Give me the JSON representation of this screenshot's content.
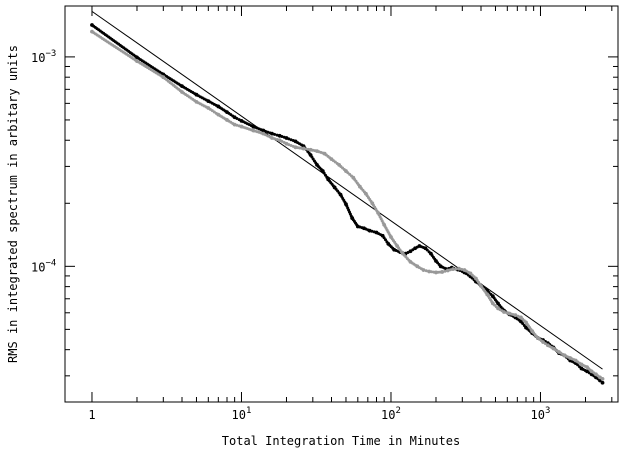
{
  "chart_data": {
    "type": "scatter",
    "title": "",
    "xlabel": "Total Integration Time in Minutes",
    "ylabel": "RMS in integrated spectrum in arbitary units",
    "xscale": "log",
    "yscale": "log",
    "xlim": [
      0.66,
      3300
    ],
    "ylim": [
      2.25e-05,
      0.00175
    ],
    "grid": false,
    "x_ticks": [
      {
        "value": 1,
        "base": "1",
        "exp": ""
      },
      {
        "value": 10,
        "base": "10",
        "exp": "1"
      },
      {
        "value": 100,
        "base": "10",
        "exp": "2"
      },
      {
        "value": 1000,
        "base": "10",
        "exp": "3"
      }
    ],
    "y_ticks": [
      {
        "value": 0.0001,
        "base": "10",
        "exp": "−4"
      },
      {
        "value": 0.001,
        "base": "10",
        "exp": "−3"
      }
    ],
    "reference_line": {
      "points": [
        [
          1,
          0.00165
        ],
        [
          2600,
          3.23e-05
        ]
      ],
      "color": "#000000"
    },
    "series": [
      {
        "color": "#000000",
        "marker": "dot",
        "points": [
          [
            1,
            0.00142
          ],
          [
            2,
            0.000995
          ],
          [
            3,
            0.000825
          ],
          [
            4,
            0.000725
          ],
          [
            5,
            0.00066
          ],
          [
            6,
            0.000615
          ],
          [
            7,
            0.00058
          ],
          [
            8,
            0.000545
          ],
          [
            9,
            0.000515
          ],
          [
            10,
            0.000495
          ],
          [
            12,
            0.000465
          ],
          [
            14,
            0.000445
          ],
          [
            16,
            0.00043
          ],
          [
            18,
            0.00042
          ],
          [
            20,
            0.00041
          ],
          [
            23,
            0.000395
          ],
          [
            26,
            0.000375
          ],
          [
            29,
            0.00034
          ],
          [
            32,
            0.000305
          ],
          [
            35,
            0.000285
          ],
          [
            38,
            0.00026
          ],
          [
            42,
            0.000238
          ],
          [
            46,
            0.00022
          ],
          [
            50,
            0.000198
          ],
          [
            55,
            0.00017
          ],
          [
            60,
            0.000155
          ],
          [
            66,
            0.000152
          ],
          [
            72,
            0.000148
          ],
          [
            80,
            0.000145
          ],
          [
            88,
            0.00014
          ],
          [
            96,
            0.000128
          ],
          [
            105,
            0.00012
          ],
          [
            115,
            0.000117
          ],
          [
            125,
            0.000115
          ],
          [
            135,
            0.000118
          ],
          [
            145,
            0.000122
          ],
          [
            155,
            0.000125
          ],
          [
            170,
            0.000122
          ],
          [
            185,
            0.000115
          ],
          [
            200,
            0.000106
          ],
          [
            215,
            0.0001
          ],
          [
            235,
            9.7e-05
          ],
          [
            255,
            9.85e-05
          ],
          [
            280,
            9.65e-05
          ],
          [
            310,
            9.35e-05
          ],
          [
            340,
            8.95e-05
          ],
          [
            370,
            8.45e-05
          ],
          [
            400,
            8.1e-05
          ],
          [
            440,
            7.65e-05
          ],
          [
            480,
            7.2e-05
          ],
          [
            520,
            6.65e-05
          ],
          [
            570,
            6.15e-05
          ],
          [
            620,
            5.9e-05
          ],
          [
            680,
            5.7e-05
          ],
          [
            740,
            5.45e-05
          ],
          [
            800,
            5.1e-05
          ],
          [
            880,
            4.8e-05
          ],
          [
            960,
            4.55e-05
          ],
          [
            1040,
            4.45e-05
          ],
          [
            1120,
            4.3e-05
          ],
          [
            1220,
            4.1e-05
          ],
          [
            1330,
            3.85e-05
          ],
          [
            1450,
            3.75e-05
          ],
          [
            1580,
            3.55e-05
          ],
          [
            1720,
            3.45e-05
          ],
          [
            1880,
            3.25e-05
          ],
          [
            2050,
            3.15e-05
          ],
          [
            2200,
            3.05e-05
          ],
          [
            2350,
            2.95e-05
          ],
          [
            2500,
            2.85e-05
          ],
          [
            2600,
            2.78e-05
          ]
        ]
      },
      {
        "color": "#999999",
        "marker": "dot",
        "points": [
          [
            1,
            0.00132
          ],
          [
            2,
            0.000955
          ],
          [
            3,
            0.0008
          ],
          [
            4,
            0.00068
          ],
          [
            5,
            0.00061
          ],
          [
            6,
            0.00057
          ],
          [
            7,
            0.00053
          ],
          [
            8,
            0.0005
          ],
          [
            9,
            0.000475
          ],
          [
            10,
            0.000465
          ],
          [
            12,
            0.000445
          ],
          [
            14,
            0.00043
          ],
          [
            16,
            0.00041
          ],
          [
            18,
            0.0004
          ],
          [
            20,
            0.000385
          ],
          [
            23,
            0.00037
          ],
          [
            26,
            0.000365
          ],
          [
            29,
            0.00036
          ],
          [
            32,
            0.000355
          ],
          [
            36,
            0.000345
          ],
          [
            40,
            0.000325
          ],
          [
            45,
            0.000305
          ],
          [
            50,
            0.000285
          ],
          [
            56,
            0.000265
          ],
          [
            62,
            0.00024
          ],
          [
            68,
            0.000222
          ],
          [
            75,
            0.0002
          ],
          [
            82,
            0.00018
          ],
          [
            90,
            0.000158
          ],
          [
            100,
            0.000138
          ],
          [
            110,
            0.000125
          ],
          [
            120,
            0.000115
          ],
          [
            135,
            0.000105
          ],
          [
            150,
            0.0001
          ],
          [
            165,
            9.6e-05
          ],
          [
            180,
            9.45e-05
          ],
          [
            200,
            9.35e-05
          ],
          [
            220,
            9.4e-05
          ],
          [
            240,
            9.55e-05
          ],
          [
            260,
            9.7e-05
          ],
          [
            285,
            9.75e-05
          ],
          [
            310,
            9.6e-05
          ],
          [
            340,
            9.25e-05
          ],
          [
            370,
            8.75e-05
          ],
          [
            400,
            8.05e-05
          ],
          [
            440,
            7.35e-05
          ],
          [
            480,
            6.65e-05
          ],
          [
            520,
            6.3e-05
          ],
          [
            570,
            6.05e-05
          ],
          [
            620,
            5.95e-05
          ],
          [
            680,
            5.85e-05
          ],
          [
            740,
            5.7e-05
          ],
          [
            800,
            5.4e-05
          ],
          [
            880,
            4.9e-05
          ],
          [
            960,
            4.55e-05
          ],
          [
            1040,
            4.35e-05
          ],
          [
            1120,
            4.2e-05
          ],
          [
            1220,
            4.05e-05
          ],
          [
            1330,
            3.9e-05
          ],
          [
            1450,
            3.75e-05
          ],
          [
            1580,
            3.65e-05
          ],
          [
            1720,
            3.55e-05
          ],
          [
            1880,
            3.4e-05
          ],
          [
            2050,
            3.3e-05
          ],
          [
            2200,
            3.15e-05
          ],
          [
            2350,
            3.05e-05
          ],
          [
            2500,
            2.95e-05
          ],
          [
            2600,
            2.9e-05
          ]
        ]
      }
    ]
  }
}
